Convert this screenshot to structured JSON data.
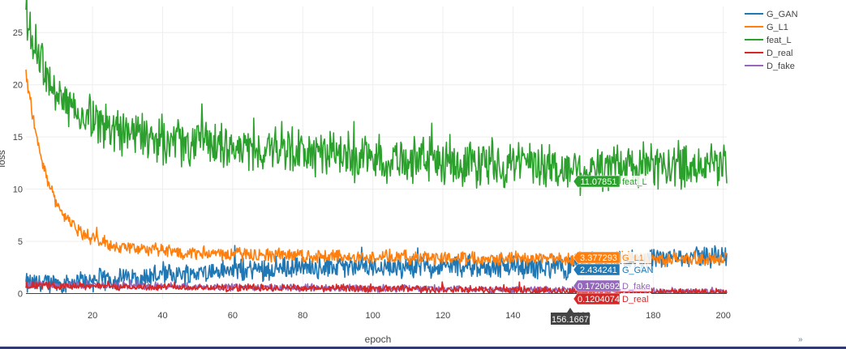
{
  "chart_data": {
    "type": "line",
    "xlabel": "epoch",
    "ylabel": "loss",
    "xlim": [
      1,
      201
    ],
    "ylim": [
      -0.5,
      27.5
    ],
    "x_ticks": [
      20,
      40,
      60,
      80,
      100,
      120,
      140,
      160,
      180,
      200
    ],
    "y_ticks": [
      0,
      5,
      10,
      15,
      20,
      25
    ],
    "grid": true,
    "legend_position": "top-right",
    "hover": {
      "x_value": "156.1667",
      "entries": [
        {
          "series": "feat_L",
          "value": "11.07851",
          "y": 11.07851
        },
        {
          "series": "G_L1",
          "value": "3.377293",
          "y": 3.377293
        },
        {
          "series": "G_GAN",
          "value": "2.434241",
          "y": 2.434241
        },
        {
          "series": "D_fake",
          "value": "0.1720692",
          "y": 0.1720692
        },
        {
          "series": "D_real",
          "value": "0.1204074",
          "y": 0.1204074
        }
      ]
    },
    "series": [
      {
        "name": "G_GAN",
        "color": "#1f77b4",
        "anchors": [
          [
            1,
            0.9
          ],
          [
            10,
            1.0
          ],
          [
            20,
            1.3
          ],
          [
            30,
            1.5
          ],
          [
            40,
            1.8
          ],
          [
            50,
            2.0
          ],
          [
            60,
            2.2
          ],
          [
            70,
            2.4
          ],
          [
            80,
            2.5
          ],
          [
            90,
            2.5
          ],
          [
            100,
            2.6
          ],
          [
            110,
            2.6
          ],
          [
            120,
            2.6
          ],
          [
            130,
            2.6
          ],
          [
            140,
            2.5
          ],
          [
            150,
            2.5
          ],
          [
            156,
            2.43
          ],
          [
            160,
            2.8
          ],
          [
            170,
            3.0
          ],
          [
            180,
            3.2
          ],
          [
            190,
            3.5
          ],
          [
            201,
            3.6
          ]
        ],
        "noise": 0.9
      },
      {
        "name": "G_L1",
        "color": "#ff7f0e",
        "anchors": [
          [
            1,
            21
          ],
          [
            2,
            19
          ],
          [
            4,
            15
          ],
          [
            6,
            12
          ],
          [
            8,
            10
          ],
          [
            10,
            8.5
          ],
          [
            12,
            7.5
          ],
          [
            15,
            6.3
          ],
          [
            18,
            5.6
          ],
          [
            22,
            5.0
          ],
          [
            26,
            4.6
          ],
          [
            30,
            4.4
          ],
          [
            40,
            4.1
          ],
          [
            50,
            3.9
          ],
          [
            60,
            3.8
          ],
          [
            70,
            3.7
          ],
          [
            80,
            3.6
          ],
          [
            100,
            3.5
          ],
          [
            120,
            3.45
          ],
          [
            140,
            3.4
          ],
          [
            156,
            3.38
          ],
          [
            180,
            3.3
          ],
          [
            201,
            3.3
          ]
        ],
        "noise": 0.55
      },
      {
        "name": "feat_L",
        "color": "#2ca02c",
        "anchors": [
          [
            1,
            25.5
          ],
          [
            3,
            24
          ],
          [
            5,
            22
          ],
          [
            8,
            20
          ],
          [
            12,
            18.5
          ],
          [
            18,
            17
          ],
          [
            25,
            16
          ],
          [
            35,
            15
          ],
          [
            45,
            14.5
          ],
          [
            60,
            14
          ],
          [
            80,
            13.5
          ],
          [
            100,
            13
          ],
          [
            120,
            12.7
          ],
          [
            140,
            12.3
          ],
          [
            156,
            11.9
          ],
          [
            170,
            12.1
          ],
          [
            185,
            12.3
          ],
          [
            201,
            12.5
          ]
        ],
        "noise": 1.9
      },
      {
        "name": "D_real",
        "color": "#d62728",
        "anchors": [
          [
            1,
            0.8
          ],
          [
            20,
            0.7
          ],
          [
            40,
            0.6
          ],
          [
            60,
            0.55
          ],
          [
            80,
            0.5
          ],
          [
            100,
            0.45
          ],
          [
            120,
            0.4
          ],
          [
            140,
            0.35
          ],
          [
            156,
            0.2
          ],
          [
            180,
            0.15
          ],
          [
            201,
            0.12
          ]
        ],
        "noise": 0.3
      },
      {
        "name": "D_fake",
        "color": "#9467bd",
        "anchors": [
          [
            1,
            0.9
          ],
          [
            20,
            0.8
          ],
          [
            40,
            0.7
          ],
          [
            60,
            0.6
          ],
          [
            80,
            0.55
          ],
          [
            100,
            0.5
          ],
          [
            120,
            0.45
          ],
          [
            140,
            0.4
          ],
          [
            156,
            0.3
          ],
          [
            180,
            0.2
          ],
          [
            201,
            0.15
          ]
        ],
        "noise": 0.3
      }
    ]
  }
}
